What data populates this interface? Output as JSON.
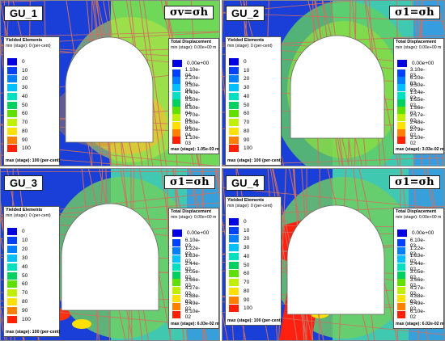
{
  "panels": [
    {
      "id": "gu1",
      "gu_label": "GU_1",
      "sigma_text": "σv=σh",
      "yield_legend": {
        "title": "Yielded Elements",
        "subtitle": "min (stage): 0 (per-cent)",
        "values": [
          "0",
          "10",
          "20",
          "30",
          "40",
          "50",
          "60",
          "70",
          "80",
          "90",
          "100"
        ],
        "footer": "max (stage): 100 (per-cent)"
      },
      "disp_legend": {
        "title": "Total Displacement",
        "subtitle": "min (stage): 0.00e+00 m",
        "values": [
          "0.00e+00",
          "1.10e-04",
          "2.20e-04",
          "3.30e-04",
          "4.40e-04",
          "5.50e-04",
          "6.60e-04",
          "7.70e-04",
          "8.80e-04",
          "9.90e-04",
          "1.10e-03"
        ],
        "footer": "max (stage): 1.05e-03 m"
      }
    },
    {
      "id": "gu2",
      "gu_label": "GU_2",
      "sigma_text": "σ1=σh",
      "yield_legend": {
        "title": "Yielded Elements",
        "subtitle": "min (stage): 0 (per-cent)",
        "values": [
          "0",
          "10",
          "20",
          "30",
          "40",
          "50",
          "60",
          "70",
          "80",
          "90",
          "100"
        ],
        "footer": "max (stage): 100 (per-cent)"
      },
      "disp_legend": {
        "title": "Total Displacement",
        "subtitle": "min (stage): 0.00e+00 m",
        "values": [
          "0.00e+00",
          "3.10e-03",
          "6.20e-03",
          "9.30e-03",
          "1.24e-02",
          "1.55e-02",
          "1.86e-02",
          "2.17e-02",
          "2.48e-02",
          "2.79e-02",
          "3.10e-02"
        ],
        "footer": "max (stage): 3.03e-02 m"
      }
    },
    {
      "id": "gu3",
      "gu_label": "GU_3",
      "sigma_text": "σ1=σh",
      "yield_legend": {
        "title": "Yielded Elements",
        "subtitle": "min (stage): 0 (per-cent)",
        "values": [
          "0",
          "10",
          "20",
          "30",
          "40",
          "50",
          "60",
          "70",
          "80",
          "90",
          "100"
        ],
        "footer": "max (stage): 100 (per-cent)"
      },
      "disp_legend": {
        "title": "Total Displacement",
        "subtitle": "min (stage): 0.00e+00 m",
        "values": [
          "0.00e+00",
          "6.10e-03",
          "1.22e-02",
          "1.83e-02",
          "2.44e-02",
          "3.05e-02",
          "3.66e-02",
          "4.27e-02",
          "4.88e-02",
          "5.49e-02",
          "6.10e-02"
        ],
        "footer": "max (stage): 6.03e-02 m"
      }
    },
    {
      "id": "gu4",
      "gu_label": "GU_4",
      "sigma_text": "σ1=σh",
      "yield_legend": {
        "title": "Yielded Elements",
        "subtitle": "min (stage): 0 (per-cent)",
        "values": [
          "0",
          "10",
          "20",
          "30",
          "40",
          "50",
          "60",
          "70",
          "80",
          "90",
          "100"
        ],
        "footer": "max (stage): 100 (per-cent)"
      },
      "disp_legend": {
        "title": "Total Displacement",
        "subtitle": "min (stage): 0.00e+00 m",
        "values": [
          "0.00e+00",
          "6.10e-03",
          "1.22e-02",
          "1.83e-02",
          "2.44e-02",
          "3.05e-02",
          "3.66e-02",
          "4.27e-02",
          "4.88e-02",
          "5.49e-02",
          "6.10e-02"
        ],
        "footer": "max (stage): 6.02e-02 m"
      }
    }
  ],
  "legend_colors": [
    "#0000e0",
    "#0040ff",
    "#0080ff",
    "#00c0ff",
    "#00e0c0",
    "#00d060",
    "#60e000",
    "#c0f000",
    "#ffe000",
    "#ff8000",
    "#ff2000"
  ],
  "colors": {
    "joint_lines": "#d07060",
    "yield_bg": "#1a3fd8",
    "disp_green": "#60d060",
    "disp_teal": "#40c8b0",
    "disp_blue": "#3080ff",
    "tunnel": "#ffffff"
  }
}
